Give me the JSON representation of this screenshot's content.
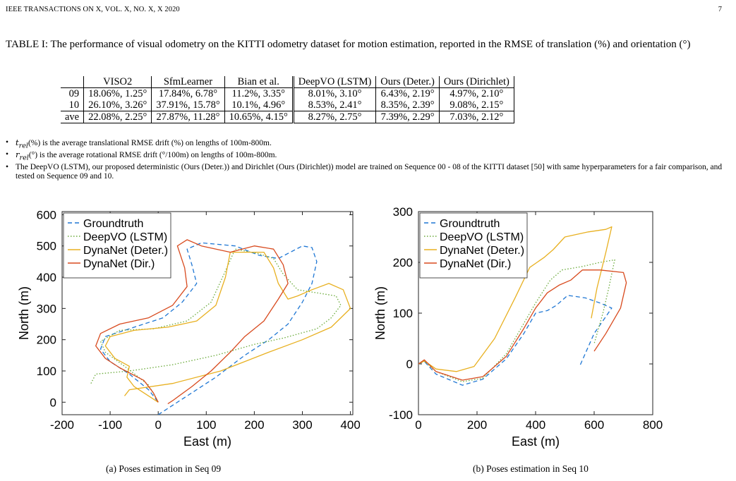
{
  "header": {
    "journal": "IEEE TRANSACTIONS ON X, VOL. X, NO. X, X 2020",
    "page": "7"
  },
  "table": {
    "caption": "TABLE I: The performance of visual odometry on the KITTI odometry dataset for motion estimation, reported in the RMSE of translation (%) and orientation (°)",
    "columns": [
      "VISO2",
      "SfmLearner",
      "Bian et al.",
      "DeepVO (LSTM)",
      "Ours (Deter.)",
      "Ours (Dirichlet)"
    ],
    "rows": [
      {
        "label": "09",
        "cells": [
          "18.06%, 1.25°",
          "17.84%, 6.78°",
          "11.2%, 3.35°",
          "8.01%, 3.10°",
          "6.43%, 2.19°",
          "4.97%, 2.10°"
        ]
      },
      {
        "label": "10",
        "cells": [
          "26.10%, 3.26°",
          "37.91%, 15.78°",
          "10.1%, 4.96°",
          "8.53%, 2.41°",
          "8.35%, 2.39°",
          "9.08%, 2.15°"
        ]
      },
      {
        "label": "ave",
        "cells": [
          "22.08%, 2.25°",
          "27.87%, 11.28°",
          "10.65%, 4.15°",
          "8.27%, 2.75°",
          "7.39%, 2.29°",
          "7.03%, 2.12°"
        ]
      }
    ]
  },
  "notes": {
    "trel_sym": "t",
    "trel_sub": "rel",
    "trel_unit": "(%)",
    "trel_text": " is the average translational RMSE drift (%) on lengths of 100m-800m.",
    "rrel_sym": "r",
    "rrel_sub": "rel",
    "rrel_unit": "(°)",
    "rrel_text": " is the average rotational RMSE drift (°/100m) on lengths of 100m-800m.",
    "training": "The DeepVO (LSTM), our proposed deterministic (Ours (Deter.)) and Dirichlet (Ours (Dirichlet)) model are trained on Sequence 00 - 08 of the KITTI dataset [50] with same hyperparameters for a fair comparison, and tested on Sequence 09 and 10."
  },
  "colors": {
    "groundtruth": "#1f77d4",
    "deepvo": "#6aaa3a",
    "deter": "#e8b020",
    "dir": "#d84a1e"
  },
  "chart_data": [
    {
      "type": "line",
      "caption": "(a)  Poses estimation in Seq 09",
      "xlabel": "East (m)",
      "ylabel": "North (m)",
      "xlim": [
        -200,
        405
      ],
      "ylim": [
        -40,
        610
      ],
      "xticks": [
        -200,
        -100,
        0,
        100,
        200,
        300,
        400
      ],
      "yticks": [
        0,
        100,
        200,
        300,
        400,
        500,
        600
      ],
      "legend_position": "top-left",
      "series": [
        {
          "name": "Groundtruth",
          "style": "dashed",
          "color": "#1f77d4",
          "points": [
            [
              0,
              -40
            ],
            [
              20,
              -20
            ],
            [
              60,
              20
            ],
            [
              120,
              80
            ],
            [
              180,
              150
            ],
            [
              230,
              200
            ],
            [
              270,
              250
            ],
            [
              300,
              320
            ],
            [
              320,
              380
            ],
            [
              330,
              450
            ],
            [
              320,
              495
            ],
            [
              300,
              500
            ],
            [
              275,
              480
            ],
            [
              250,
              460
            ],
            [
              210,
              470
            ],
            [
              160,
              500
            ],
            [
              90,
              510
            ],
            [
              60,
              490
            ],
            [
              70,
              440
            ],
            [
              80,
              380
            ],
            [
              50,
              320
            ],
            [
              10,
              270
            ],
            [
              -60,
              235
            ],
            [
              -110,
              210
            ],
            [
              -120,
              170
            ],
            [
              -100,
              130
            ],
            [
              -60,
              90
            ],
            [
              -20,
              40
            ],
            [
              0,
              0
            ]
          ]
        },
        {
          "name": "DeepVO (LSTM)",
          "style": "dotted",
          "color": "#6aaa3a",
          "points": [
            [
              -140,
              60
            ],
            [
              -130,
              90
            ],
            [
              -60,
              100
            ],
            [
              30,
              120
            ],
            [
              120,
              150
            ],
            [
              200,
              185
            ],
            [
              260,
              205
            ],
            [
              330,
              235
            ],
            [
              360,
              270
            ],
            [
              380,
              310
            ],
            [
              370,
              340
            ],
            [
              330,
              350
            ],
            [
              290,
              360
            ],
            [
              260,
              410
            ],
            [
              240,
              460
            ],
            [
              210,
              475
            ],
            [
              160,
              490
            ],
            [
              140,
              420
            ],
            [
              110,
              320
            ],
            [
              60,
              260
            ],
            [
              -10,
              235
            ],
            [
              -80,
              230
            ],
            [
              -120,
              195
            ],
            [
              -110,
              160
            ],
            [
              -70,
              115
            ],
            [
              -20,
              55
            ],
            [
              0,
              0
            ]
          ]
        },
        {
          "name": "DynaNet (Deter.)",
          "style": "solid",
          "color": "#e8b020",
          "points": [
            [
              -70,
              20
            ],
            [
              -60,
              40
            ],
            [
              30,
              60
            ],
            [
              130,
              100
            ],
            [
              230,
              160
            ],
            [
              300,
              200
            ],
            [
              360,
              240
            ],
            [
              400,
              300
            ],
            [
              385,
              360
            ],
            [
              355,
              380
            ],
            [
              320,
              360
            ],
            [
              290,
              340
            ],
            [
              270,
              330
            ],
            [
              250,
              380
            ],
            [
              240,
              430
            ],
            [
              220,
              480
            ],
            [
              150,
              480
            ],
            [
              140,
              400
            ],
            [
              120,
              310
            ],
            [
              80,
              260
            ],
            [
              20,
              240
            ],
            [
              -50,
              230
            ],
            [
              -100,
              210
            ],
            [
              -110,
              180
            ],
            [
              -90,
              140
            ],
            [
              -60,
              115
            ],
            [
              -65,
              80
            ],
            [
              -50,
              50
            ],
            [
              -20,
              20
            ],
            [
              0,
              0
            ]
          ]
        },
        {
          "name": "DynaNet (Dir.)",
          "style": "solid",
          "color": "#d84a1e",
          "points": [
            [
              20,
              -5
            ],
            [
              30,
              5
            ],
            [
              70,
              50
            ],
            [
              110,
              100
            ],
            [
              150,
              160
            ],
            [
              180,
              210
            ],
            [
              220,
              260
            ],
            [
              250,
              330
            ],
            [
              270,
              380
            ],
            [
              260,
              440
            ],
            [
              240,
              490
            ],
            [
              200,
              500
            ],
            [
              150,
              480
            ],
            [
              90,
              500
            ],
            [
              60,
              520
            ],
            [
              40,
              500
            ],
            [
              55,
              430
            ],
            [
              60,
              370
            ],
            [
              30,
              310
            ],
            [
              -20,
              270
            ],
            [
              -80,
              250
            ],
            [
              -120,
              220
            ],
            [
              -130,
              180
            ],
            [
              -110,
              140
            ],
            [
              -80,
              110
            ],
            [
              -30,
              70
            ],
            [
              -10,
              30
            ],
            [
              0,
              0
            ]
          ]
        }
      ]
    },
    {
      "type": "line",
      "caption": "(b)  Poses estimation in Seq 10",
      "xlabel": "East (m)",
      "ylabel": "North (m)",
      "xlim": [
        0,
        800
      ],
      "ylim": [
        -100,
        300
      ],
      "xticks": [
        0,
        200,
        400,
        600,
        800
      ],
      "yticks": [
        -100,
        0,
        100,
        200,
        300
      ],
      "legend_position": "top-left",
      "series": [
        {
          "name": "Groundtruth",
          "style": "dashed",
          "color": "#1f77d4",
          "points": [
            [
              0,
              0
            ],
            [
              20,
              5
            ],
            [
              60,
              -20
            ],
            [
              150,
              -42
            ],
            [
              220,
              -30
            ],
            [
              300,
              10
            ],
            [
              360,
              60
            ],
            [
              400,
              100
            ],
            [
              440,
              105
            ],
            [
              470,
              115
            ],
            [
              510,
              135
            ],
            [
              570,
              130
            ],
            [
              620,
              120
            ],
            [
              660,
              110
            ],
            [
              600,
              60
            ],
            [
              550,
              -5
            ]
          ]
        },
        {
          "name": "DeepVO (LSTM)",
          "style": "dotted",
          "color": "#6aaa3a",
          "points": [
            [
              0,
              0
            ],
            [
              20,
              5
            ],
            [
              60,
              -15
            ],
            [
              150,
              -35
            ],
            [
              220,
              -28
            ],
            [
              300,
              20
            ],
            [
              360,
              80
            ],
            [
              400,
              120
            ],
            [
              450,
              165
            ],
            [
              490,
              185
            ],
            [
              560,
              192
            ],
            [
              620,
              200
            ],
            [
              670,
              205
            ],
            [
              650,
              150
            ],
            [
              630,
              100
            ],
            [
              600,
              40
            ]
          ]
        },
        {
          "name": "DynaNet (Deter.)",
          "style": "solid",
          "color": "#e8b020",
          "points": [
            [
              0,
              0
            ],
            [
              20,
              6
            ],
            [
              60,
              -10
            ],
            [
              130,
              -15
            ],
            [
              190,
              -5
            ],
            [
              260,
              50
            ],
            [
              330,
              130
            ],
            [
              380,
              190
            ],
            [
              430,
              210
            ],
            [
              460,
              225
            ],
            [
              500,
              250
            ],
            [
              580,
              260
            ],
            [
              640,
              265
            ],
            [
              660,
              270
            ],
            [
              640,
              220
            ],
            [
              610,
              150
            ],
            [
              590,
              90
            ]
          ]
        },
        {
          "name": "DynaNet (Dir.)",
          "style": "solid",
          "color": "#d84a1e",
          "points": [
            [
              0,
              0
            ],
            [
              20,
              8
            ],
            [
              60,
              -15
            ],
            [
              150,
              -32
            ],
            [
              220,
              -25
            ],
            [
              300,
              15
            ],
            [
              360,
              70
            ],
            [
              400,
              110
            ],
            [
              440,
              140
            ],
            [
              480,
              155
            ],
            [
              520,
              165
            ],
            [
              560,
              185
            ],
            [
              620,
              185
            ],
            [
              700,
              180
            ],
            [
              710,
              160
            ],
            [
              690,
              110
            ],
            [
              640,
              60
            ],
            [
              600,
              25
            ]
          ]
        }
      ]
    }
  ]
}
